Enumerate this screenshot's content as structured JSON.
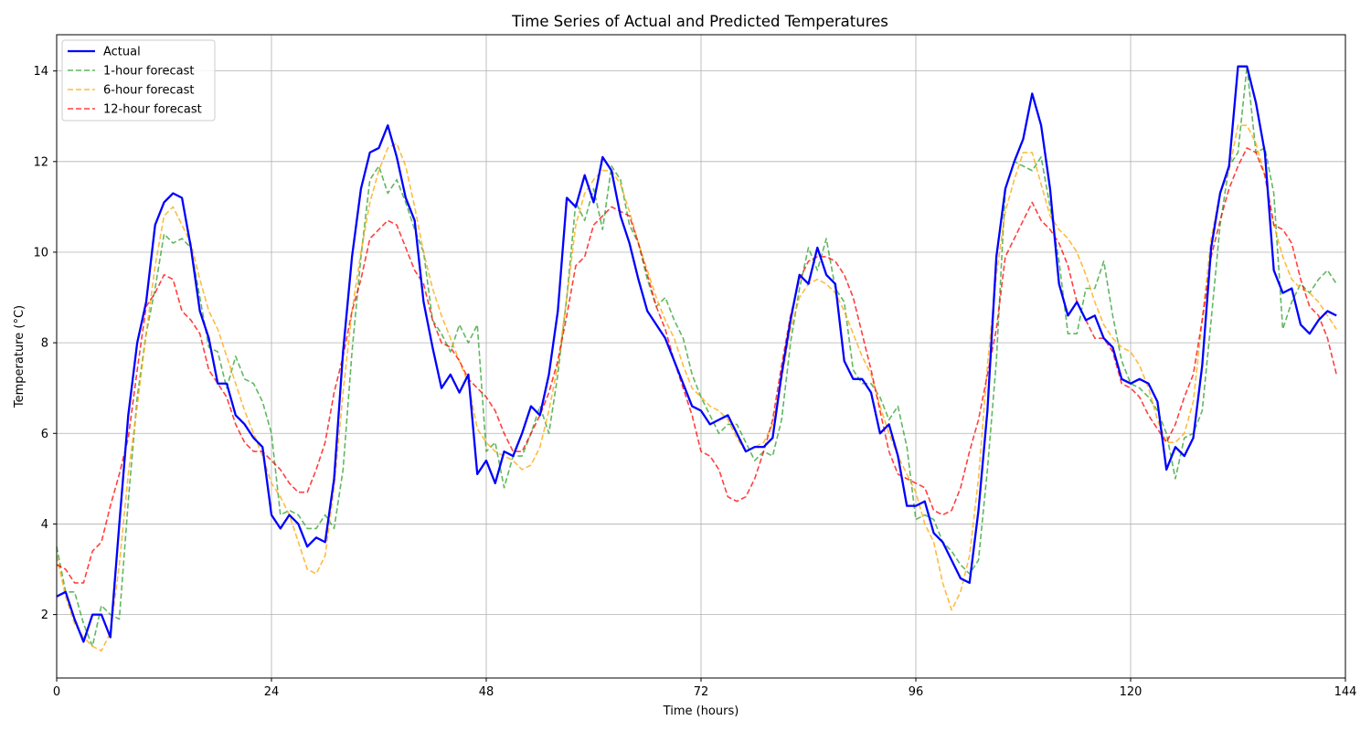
{
  "chart_data": {
    "type": "line",
    "title": "Time Series of Actual and Predicted Temperatures",
    "xlabel": "Time (hours)",
    "ylabel": "Temperature (°C)",
    "xlim": [
      0,
      144
    ],
    "ylim": [
      0.6,
      14.8
    ],
    "xticks": [
      0,
      24,
      48,
      72,
      96,
      120,
      144
    ],
    "yticks": [
      2,
      4,
      6,
      8,
      10,
      12,
      14
    ],
    "grid": true,
    "legend_position": "top-left",
    "series": [
      {
        "name": "Actual",
        "color": "#0000ff",
        "style": "solid",
        "values": [
          2.4,
          2.5,
          1.9,
          1.4,
          2.0,
          2.0,
          1.5,
          4.0,
          6.4,
          8.0,
          8.9,
          10.6,
          11.1,
          11.3,
          11.2,
          10.1,
          8.7,
          8.1,
          7.1,
          7.1,
          6.4,
          6.2,
          5.9,
          5.7,
          4.2,
          3.9,
          4.2,
          4.0,
          3.5,
          3.7,
          3.6,
          5.0,
          7.8,
          9.9,
          11.4,
          12.2,
          12.3,
          12.8,
          12.1,
          11.2,
          10.7,
          8.9,
          7.9,
          7.0,
          7.3,
          6.9,
          7.3,
          5.1,
          5.4,
          4.9,
          5.6,
          5.5,
          6.0,
          6.6,
          6.4,
          7.3,
          8.7,
          11.2,
          11.0,
          11.7,
          11.1,
          12.1,
          11.8,
          10.8,
          10.2,
          9.4,
          8.7,
          8.4,
          8.1,
          7.6,
          7.1,
          6.6,
          6.5,
          6.2,
          6.3,
          6.4,
          6.0,
          5.6,
          5.7,
          5.7,
          5.9,
          7.3,
          8.5,
          9.5,
          9.3,
          10.1,
          9.5,
          9.3,
          7.6,
          7.2,
          7.2,
          6.9,
          6.0,
          6.2,
          5.5,
          4.4,
          4.4,
          4.5,
          3.8,
          3.6,
          3.2,
          2.8,
          2.7,
          4.3,
          6.5,
          9.9,
          11.4,
          12.0,
          12.5,
          13.5,
          12.8,
          11.4,
          9.3,
          8.6,
          8.9,
          8.5,
          8.6,
          8.1,
          7.9,
          7.2,
          7.1,
          7.2,
          7.1,
          6.7,
          5.2,
          5.7,
          5.5,
          5.9,
          7.5,
          10.1,
          11.3,
          11.9,
          14.1,
          14.1,
          13.3,
          12.2,
          9.6,
          9.1,
          9.2,
          8.4,
          8.2,
          8.5,
          8.7,
          8.6
        ]
      },
      {
        "name": "1-hour forecast",
        "color": "#2ca02c",
        "style": "dashed",
        "values": [
          3.5,
          2.5,
          2.5,
          1.8,
          1.3,
          2.2,
          2.0,
          1.9,
          4.5,
          6.8,
          8.2,
          9.2,
          10.4,
          10.2,
          10.3,
          10.1,
          9.0,
          7.9,
          7.8,
          7.0,
          7.7,
          7.2,
          7.1,
          6.7,
          6.0,
          4.2,
          4.3,
          4.2,
          3.9,
          3.9,
          4.2,
          3.9,
          5.2,
          7.8,
          9.9,
          11.6,
          11.9,
          11.3,
          11.6,
          11.1,
          10.5,
          10.0,
          8.5,
          8.2,
          7.8,
          8.4,
          8.0,
          8.4,
          5.6,
          5.8,
          4.8,
          5.5,
          5.5,
          6.0,
          6.6,
          6.0,
          7.3,
          9.0,
          11.1,
          10.7,
          11.4,
          10.5,
          11.9,
          11.6,
          10.6,
          10.2,
          9.4,
          8.8,
          9.0,
          8.5,
          8.1,
          7.3,
          6.8,
          6.4,
          6.0,
          6.2,
          6.2,
          5.8,
          5.4,
          5.6,
          5.5,
          6.3,
          8.0,
          9.2,
          10.1,
          9.6,
          10.3,
          9.2,
          8.9,
          7.4,
          7.1,
          7.1,
          6.8,
          6.3,
          6.6,
          5.7,
          4.1,
          4.2,
          4.1,
          3.6,
          3.4,
          3.1,
          2.9,
          3.2,
          5.2,
          7.6,
          11.4,
          12.0,
          11.9,
          11.8,
          12.1,
          11.0,
          9.8,
          8.2,
          8.2,
          9.2,
          9.2,
          9.8,
          8.6,
          7.6,
          7.1,
          7.0,
          6.8,
          6.5,
          6.0,
          5.0,
          5.9,
          6.0,
          6.5,
          8.5,
          10.6,
          11.9,
          12.2,
          14.1,
          12.2,
          12.3,
          11.3,
          8.3,
          8.9,
          9.3,
          9.1,
          9.4,
          9.6,
          9.3
        ]
      },
      {
        "name": "6-hour forecast",
        "color": "#ffa500",
        "style": "dashed",
        "values": [
          3.3,
          2.4,
          1.8,
          1.5,
          1.3,
          1.2,
          1.6,
          3.1,
          5.1,
          6.6,
          8.2,
          9.7,
          10.8,
          11.0,
          10.6,
          10.2,
          9.4,
          8.7,
          8.3,
          7.7,
          7.1,
          6.5,
          6.0,
          5.5,
          4.9,
          4.6,
          4.2,
          3.6,
          3.0,
          2.9,
          3.3,
          4.8,
          6.9,
          8.7,
          10.0,
          11.1,
          11.8,
          12.3,
          12.4,
          11.9,
          11.0,
          10.0,
          9.2,
          8.6,
          8.1,
          7.6,
          7.1,
          6.1,
          5.8,
          5.6,
          5.5,
          5.4,
          5.2,
          5.3,
          5.7,
          6.5,
          7.5,
          9.0,
          10.6,
          11.3,
          11.6,
          11.8,
          11.8,
          11.5,
          10.9,
          10.2,
          9.6,
          9.0,
          8.5,
          8.1,
          7.5,
          7.0,
          6.8,
          6.6,
          6.5,
          6.3,
          5.9,
          5.6,
          5.7,
          5.8,
          6.2,
          7.2,
          8.3,
          9.0,
          9.3,
          9.4,
          9.3,
          9.1,
          8.7,
          8.2,
          7.7,
          7.3,
          6.6,
          6.0,
          5.5,
          5.1,
          4.7,
          4.0,
          3.6,
          2.7,
          2.1,
          2.5,
          3.3,
          5.0,
          7.5,
          9.5,
          10.9,
          11.6,
          12.2,
          12.2,
          11.5,
          10.8,
          10.5,
          10.3,
          10.0,
          9.5,
          8.9,
          8.4,
          8.1,
          7.9,
          7.8,
          7.5,
          7.0,
          6.3,
          5.8,
          5.8,
          6.0,
          6.7,
          8.5,
          10.3,
          11.3,
          11.8,
          12.8,
          12.8,
          12.4,
          11.7,
          10.6,
          9.9,
          9.4,
          9.2,
          9.1,
          8.9,
          8.6,
          8.3
        ]
      },
      {
        "name": "12-hour forecast",
        "color": "#ff0000",
        "style": "dashed",
        "values": [
          3.1,
          3.0,
          2.7,
          2.7,
          3.4,
          3.6,
          4.4,
          5.1,
          5.9,
          7.4,
          8.8,
          9.1,
          9.5,
          9.4,
          8.7,
          8.5,
          8.2,
          7.4,
          7.1,
          6.8,
          6.2,
          5.8,
          5.6,
          5.6,
          5.4,
          5.2,
          4.9,
          4.7,
          4.7,
          5.2,
          5.8,
          6.9,
          7.7,
          8.7,
          9.4,
          10.3,
          10.5,
          10.7,
          10.6,
          10.1,
          9.6,
          9.3,
          8.5,
          8.0,
          7.9,
          7.6,
          7.2,
          7.0,
          6.8,
          6.5,
          6.0,
          5.6,
          5.6,
          6.0,
          6.4,
          6.9,
          7.6,
          8.6,
          9.7,
          9.9,
          10.6,
          10.8,
          11.0,
          10.9,
          10.8,
          10.2,
          9.5,
          8.8,
          8.3,
          7.6,
          7.0,
          6.4,
          5.6,
          5.5,
          5.2,
          4.6,
          4.5,
          4.6,
          5.0,
          5.6,
          6.3,
          7.5,
          8.6,
          9.4,
          9.8,
          9.9,
          9.9,
          9.8,
          9.5,
          9.0,
          8.2,
          7.4,
          6.5,
          5.6,
          5.1,
          5.0,
          4.9,
          4.8,
          4.3,
          4.2,
          4.3,
          4.8,
          5.6,
          6.3,
          7.3,
          8.3,
          9.9,
          10.3,
          10.7,
          11.1,
          10.7,
          10.5,
          10.2,
          9.7,
          8.9,
          8.5,
          8.1,
          8.1,
          7.8,
          7.1,
          7.0,
          6.8,
          6.4,
          6.1,
          5.8,
          6.2,
          6.8,
          7.3,
          8.5,
          9.9,
          10.7,
          11.4,
          11.9,
          12.3,
          12.2,
          11.7,
          10.6,
          10.5,
          10.2,
          9.4,
          8.8,
          8.6,
          8.1,
          7.3
        ]
      }
    ]
  }
}
